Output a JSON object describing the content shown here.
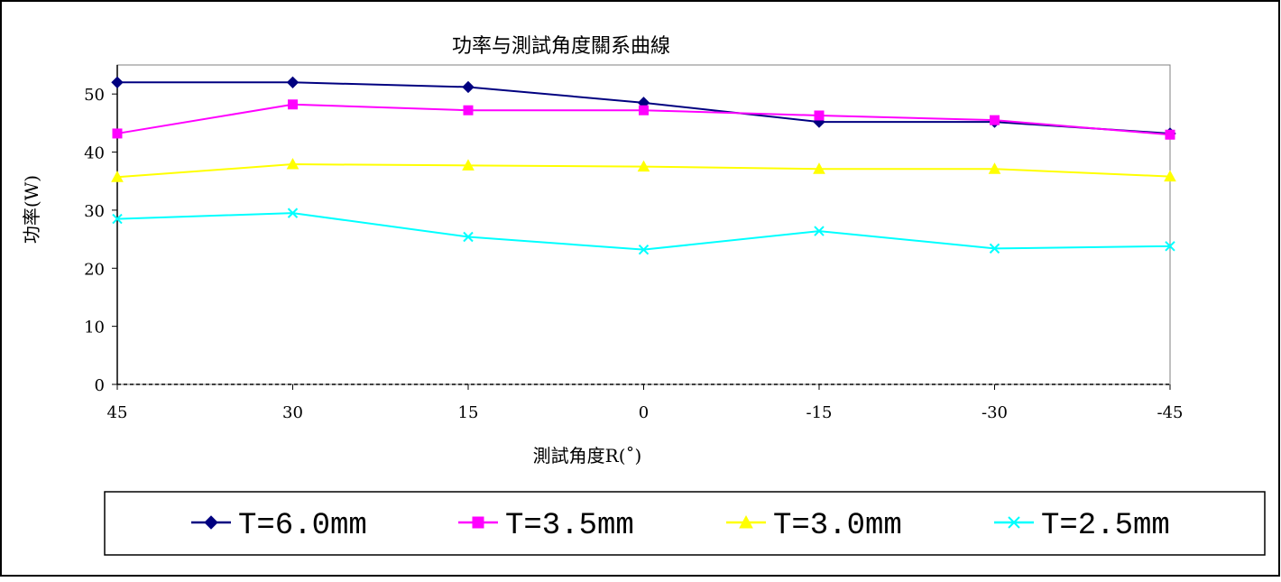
{
  "chart_data": {
    "type": "line",
    "title": "功率与測試角度關系曲線",
    "xlabel": "測試角度R(˚)",
    "ylabel": "功率(W)",
    "categories": [
      "45",
      "30",
      "15",
      "0",
      "-15",
      "-30",
      "-45"
    ],
    "ylim": [
      0,
      55
    ],
    "yticks": [
      0,
      10,
      20,
      30,
      40,
      50
    ],
    "grid": false,
    "legend_position": "bottom",
    "series": [
      {
        "name": "T=6.0mm",
        "color": "#000080",
        "marker": "diamond",
        "values": [
          52.0,
          52.0,
          51.2,
          48.5,
          45.2,
          45.2,
          43.2
        ]
      },
      {
        "name": "T=3.5mm",
        "color": "#FF00FF",
        "marker": "square",
        "values": [
          43.2,
          48.2,
          47.2,
          47.2,
          46.3,
          45.5,
          43.0
        ]
      },
      {
        "name": "T=3.0mm",
        "color": "#FFFF00",
        "marker": "triangle",
        "values": [
          35.7,
          37.9,
          37.7,
          37.5,
          37.1,
          37.1,
          35.8
        ]
      },
      {
        "name": "T=2.5mm",
        "color": "#00FFFF",
        "marker": "x",
        "values": [
          28.5,
          29.5,
          25.4,
          23.2,
          26.4,
          23.4,
          23.8
        ]
      }
    ]
  }
}
